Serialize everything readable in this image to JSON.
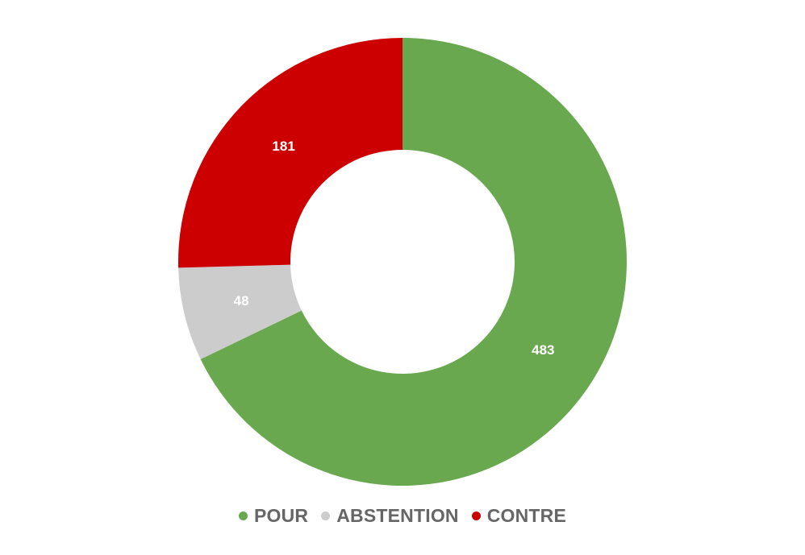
{
  "chart_data": {
    "type": "pie",
    "variant": "donut",
    "title": "",
    "categories": [
      "POUR",
      "ABSTENTION",
      "CONTRE"
    ],
    "values": [
      483,
      48,
      181
    ],
    "colors": [
      "#6aa84f",
      "#cccccc",
      "#cc0000"
    ],
    "data_labels": [
      "483",
      "48",
      "181"
    ],
    "legend_position": "bottom-center",
    "start_angle": "top, clockwise"
  }
}
